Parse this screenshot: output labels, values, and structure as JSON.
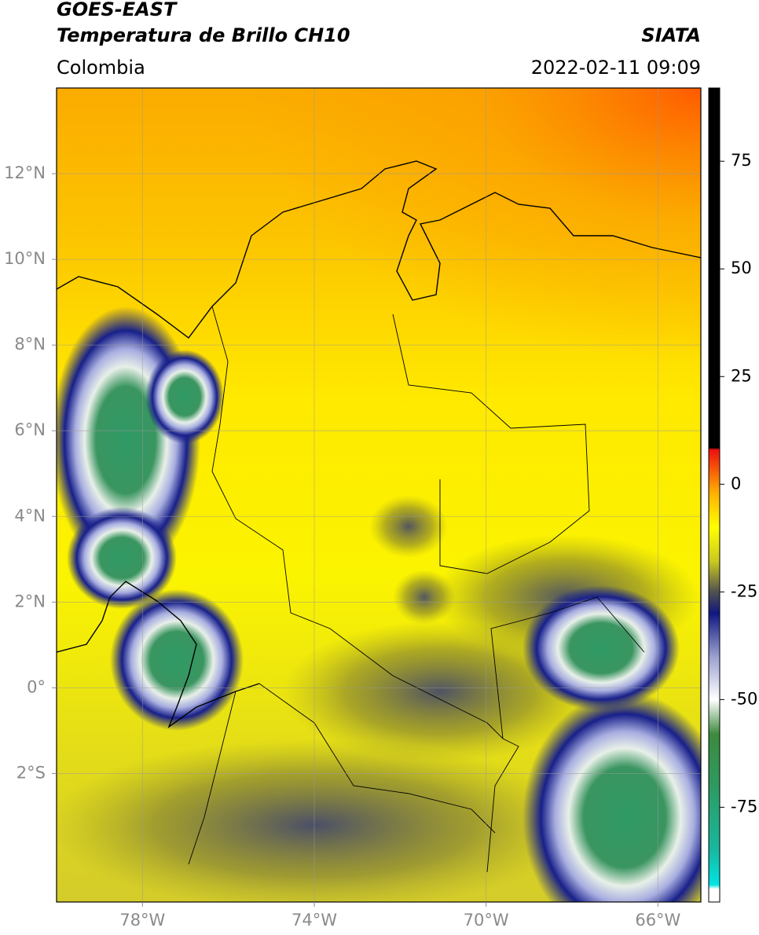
{
  "header": {
    "title_line1": "GOES-EAST",
    "title_line2": "Temperatura de Brillo CH10",
    "region": "Colombia",
    "source": "SIATA",
    "datetime": "2022-02-11 09:09"
  },
  "map": {
    "xlim": [
      -80,
      -65
    ],
    "ylim": [
      -5,
      14
    ],
    "xticks": [
      {
        "value": -78,
        "label": "78°W"
      },
      {
        "value": -74,
        "label": "74°W"
      },
      {
        "value": -70,
        "label": "70°W"
      },
      {
        "value": -66,
        "label": "66°W"
      }
    ],
    "yticks": [
      {
        "value": -2,
        "label": "2°S"
      },
      {
        "value": 0,
        "label": "0°"
      },
      {
        "value": 4,
        "label": "4°N"
      },
      {
        "value": 6,
        "label": "6°N"
      },
      {
        "value": 8,
        "label": "8°N"
      },
      {
        "value": 10,
        "label": "10°N"
      },
      {
        "value": 12,
        "label": "12°N"
      }
    ],
    "yticks_extra": [
      {
        "value": 2,
        "label": "2°N"
      }
    ],
    "grid": true
  },
  "colorbar": {
    "lim": [
      -97,
      92
    ],
    "ticks": [
      -75,
      -50,
      -25,
      0,
      25,
      50,
      75
    ],
    "colors": [
      {
        "value": -97,
        "color": "#ffffff"
      },
      {
        "value": -94,
        "color": "#ffffff"
      },
      {
        "value": -93,
        "color": "#00e5e5"
      },
      {
        "value": -85,
        "color": "#18b8a0"
      },
      {
        "value": -70,
        "color": "#2e9a60"
      },
      {
        "value": -58,
        "color": "#3d8a3d"
      },
      {
        "value": -50,
        "color": "#ffffff"
      },
      {
        "value": -40,
        "color": "#9aa0d0"
      },
      {
        "value": -30,
        "color": "#101880"
      },
      {
        "value": -25,
        "color": "#505050"
      },
      {
        "value": -18,
        "color": "#c8c820"
      },
      {
        "value": -10,
        "color": "#ffff00"
      },
      {
        "value": -2,
        "color": "#ffb000"
      },
      {
        "value": 8,
        "color": "#ee1010"
      },
      {
        "value": 8.5,
        "color": "#000000"
      },
      {
        "value": 92,
        "color": "#000000"
      }
    ]
  }
}
